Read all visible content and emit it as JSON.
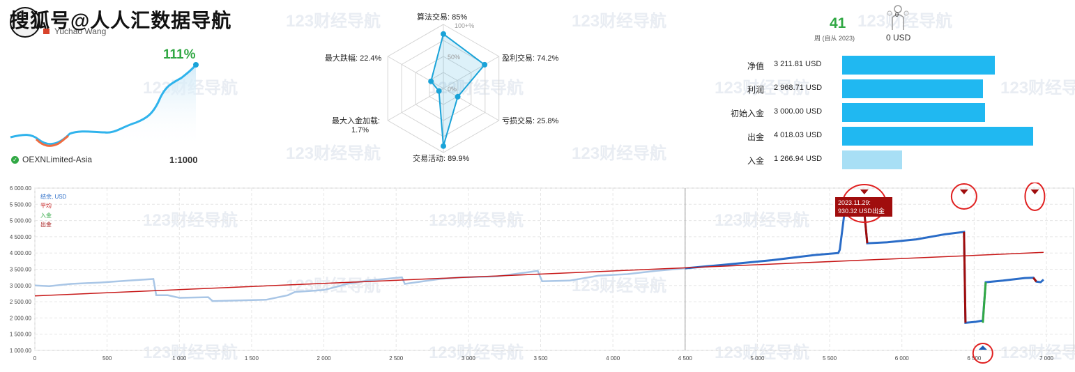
{
  "header": {
    "overlay_title": "搜狐号@人人汇数据导航",
    "author_name": "Yuchao Wang"
  },
  "watermark": {
    "text": "123财经导航"
  },
  "growth": {
    "value": "111%",
    "broker": "OEXNLimited-Asia",
    "leverage": "1:1000",
    "accent_color": "#31a844"
  },
  "radar": {
    "grid_labels": [
      "100+%",
      "50%",
      "0%"
    ],
    "axes": [
      {
        "label": "算法交易: 85%",
        "value": 85
      },
      {
        "label": "盈利交易: 74.2%",
        "value": 74.2
      },
      {
        "label": "亏损交易: 25.8%",
        "value": 25.8
      },
      {
        "label": "交易活动: 89.9%",
        "value": 89.9
      },
      {
        "label": "最大入金加载:",
        "label2": "1.7%",
        "value": 1.7
      },
      {
        "label": "最大跌幅: 22.4%",
        "value": 22.4
      }
    ],
    "color": "#1aa3d8"
  },
  "stats": {
    "weeks": "41",
    "weeks_caption": "周 (自从 2023)",
    "subscribers": "0",
    "subscribers_value": "0 USD"
  },
  "balances": [
    {
      "label": "净值",
      "value": "3 211.81 USD",
      "amount": 3211.81
    },
    {
      "label": "利润",
      "value": "2 968.71 USD",
      "amount": 2968.71
    },
    {
      "label": "初始入金",
      "value": "3 000.00 USD",
      "amount": 3000.0
    },
    {
      "label": "出金",
      "value": "4 018.03 USD",
      "amount": 4018.03
    },
    {
      "label": "入金",
      "value": "1 266.94 USD",
      "amount": 1266.94,
      "light": true
    }
  ],
  "chart": {
    "legend": [
      {
        "label": "结余, USD",
        "color": "#2a6cc7"
      },
      {
        "label": "平均",
        "color": "#c71818"
      },
      {
        "label": "入金",
        "color": "#31a844"
      },
      {
        "label": "出金",
        "color": "#a00d0d"
      }
    ],
    "tooltip": {
      "line1": "2023.11.29:",
      "line2": "930.32 USD出金"
    }
  },
  "chart_data": {
    "type": "line",
    "xlim": [
      0,
      7000
    ],
    "ylim": [
      1000,
      6000
    ],
    "x_ticks": [
      "0",
      "500",
      "1 000",
      "1 500",
      "2 000",
      "2 500",
      "3 000",
      "3 500",
      "4 000",
      "4 500",
      "5 000",
      "5 500",
      "6 000",
      "6 500",
      "7 000"
    ],
    "y_ticks": [
      "6 000.00",
      "5 500.00",
      "5 000.00",
      "4 500.00",
      "4 000.00",
      "3 500.00",
      "3 000.00",
      "2 500.00",
      "2 000.00",
      "1 500.00",
      "1 000.00"
    ],
    "history_until": 4500,
    "series": [
      {
        "name": "结余, USD",
        "points": [
          [
            0,
            3000
          ],
          [
            100,
            2980
          ],
          [
            250,
            3050
          ],
          [
            450,
            3090
          ],
          [
            650,
            3150
          ],
          [
            820,
            3200
          ],
          [
            840,
            2700
          ],
          [
            920,
            2700
          ],
          [
            1000,
            2620
          ],
          [
            1200,
            2640
          ],
          [
            1230,
            2520
          ],
          [
            1600,
            2560
          ],
          [
            1750,
            2700
          ],
          [
            1800,
            2800
          ],
          [
            2000,
            2860
          ],
          [
            2080,
            2950
          ],
          [
            2160,
            3050
          ],
          [
            2300,
            3150
          ],
          [
            2540,
            3250
          ],
          [
            2560,
            3050
          ],
          [
            2800,
            3200
          ],
          [
            2950,
            3250
          ],
          [
            3200,
            3280
          ],
          [
            3480,
            3450
          ],
          [
            3510,
            3130
          ],
          [
            3700,
            3150
          ],
          [
            3900,
            3300
          ],
          [
            4100,
            3350
          ],
          [
            4300,
            3450
          ],
          [
            4500,
            3530
          ],
          [
            4800,
            3650
          ],
          [
            5100,
            3780
          ],
          [
            5400,
            3940
          ],
          [
            5560,
            4000
          ],
          [
            5570,
            4100
          ],
          [
            5600,
            5150
          ],
          [
            5680,
            5300
          ],
          [
            5740,
            5250
          ],
          [
            5760,
            4300
          ],
          [
            5900,
            4330
          ],
          [
            6100,
            4420
          ],
          [
            6300,
            4580
          ],
          [
            6430,
            4650
          ],
          [
            6440,
            1850
          ],
          [
            6510,
            1880
          ],
          [
            6560,
            1920
          ],
          [
            6580,
            3100
          ],
          [
            6700,
            3150
          ],
          [
            6850,
            3230
          ],
          [
            6910,
            3240
          ],
          [
            6930,
            3120
          ],
          [
            6960,
            3100
          ],
          [
            6980,
            3180
          ]
        ]
      },
      {
        "name": "平均",
        "points": [
          [
            0,
            2680
          ],
          [
            6980,
            4020
          ]
        ]
      },
      {
        "name": "出金",
        "points": [
          [
            5740,
            5250
          ],
          [
            5760,
            4300
          ],
          [
            6430,
            4650
          ],
          [
            6440,
            1850
          ],
          [
            6910,
            3240
          ],
          [
            6930,
            3120
          ]
        ]
      },
      {
        "name": "入金",
        "points": [
          [
            6560,
            1850
          ],
          [
            6580,
            3100
          ]
        ]
      }
    ]
  }
}
